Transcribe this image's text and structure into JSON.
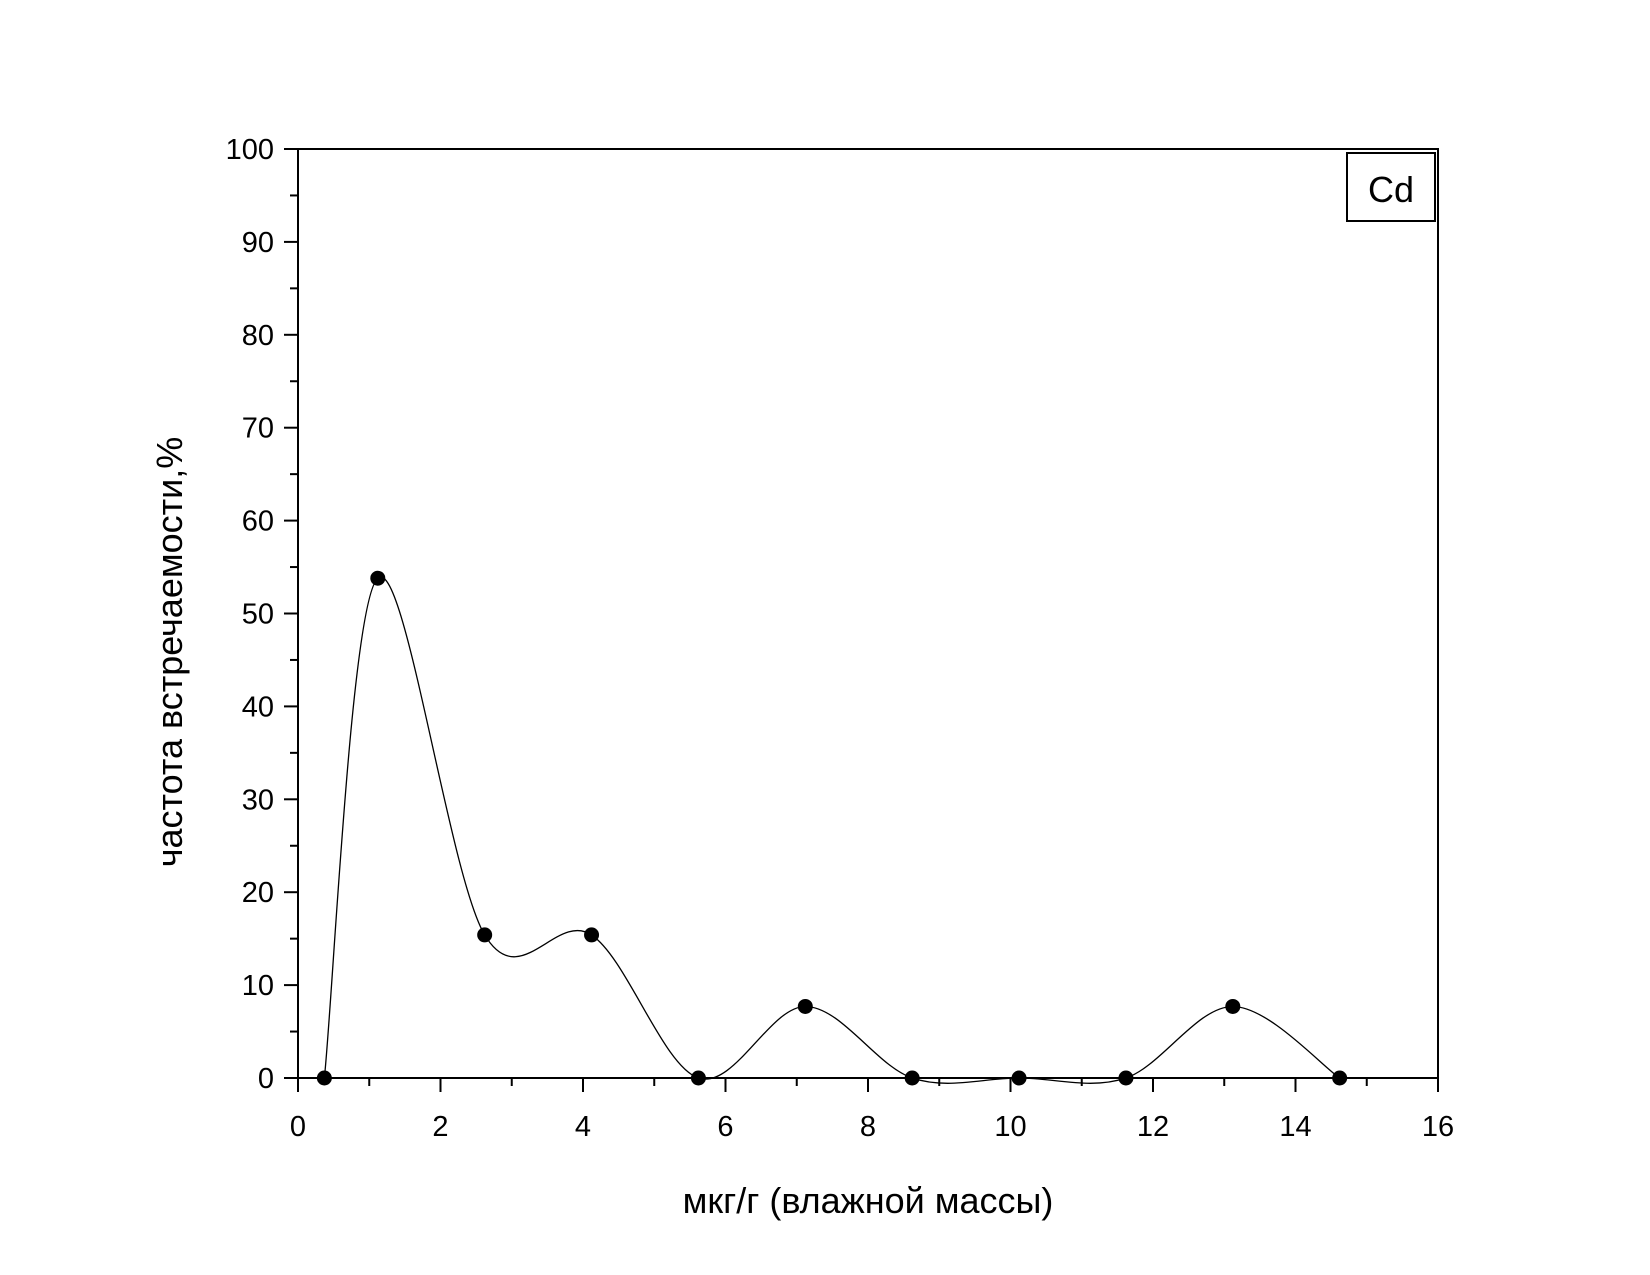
{
  "chart_data": {
    "type": "line",
    "xlabel": "мкг/г (влажной массы)",
    "ylabel": "частота встречаемости,%",
    "xlim": [
      0,
      16
    ],
    "ylim": [
      0,
      100
    ],
    "x_ticks": [
      0,
      2,
      4,
      6,
      8,
      10,
      12,
      14,
      16
    ],
    "y_ticks": [
      0,
      10,
      20,
      30,
      40,
      50,
      60,
      70,
      80,
      90,
      100
    ],
    "x_minor_step": 1,
    "y_minor_step": 5,
    "grid": false,
    "legend": {
      "label": "Cd",
      "placement": "top-right"
    },
    "series": [
      {
        "x": [
          0.37,
          1.12,
          2.62,
          4.12,
          5.62,
          7.12,
          8.62,
          10.12,
          11.62,
          13.12,
          14.62
        ],
        "values": [
          0,
          53.8,
          15.4,
          15.4,
          0,
          7.7,
          0,
          0,
          0,
          7.7,
          0
        ],
        "marker": "filled-circle",
        "curve": "smooth-spline",
        "color": "#000000"
      }
    ]
  }
}
